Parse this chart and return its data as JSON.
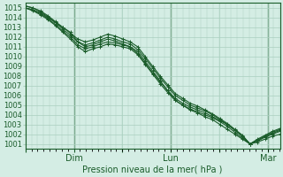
{
  "title": "",
  "xlabel": "Pression niveau de la mer( hPa )",
  "bg_color": "#d4ede4",
  "grid_color": "#aacfbf",
  "line_color": "#1a5c2a",
  "ylim": [
    1000.5,
    1015.5
  ],
  "yticks": [
    1001,
    1002,
    1003,
    1004,
    1005,
    1006,
    1007,
    1008,
    1009,
    1010,
    1011,
    1012,
    1013,
    1014,
    1015
  ],
  "xtick_labels": [
    "",
    "Dim",
    "",
    "Lun",
    "",
    "Mar"
  ],
  "xtick_positions": [
    0.0,
    0.333,
    0.667,
    1.0,
    1.333,
    1.667
  ],
  "vlines": [
    0.333,
    1.0,
    1.667
  ],
  "series": [
    [
      1015.0,
      1014.8,
      1014.5,
      1014.0,
      1013.5,
      1013.0,
      1012.5,
      1011.5,
      1011.0,
      1011.2,
      1011.5,
      1011.8,
      1011.6,
      1011.3,
      1011.0,
      1010.5,
      1009.5,
      1008.5,
      1007.5,
      1006.5,
      1005.5,
      1005.0,
      1004.5,
      1004.2,
      1003.8,
      1003.5,
      1003.0,
      1002.5,
      1002.0,
      1001.5,
      1001.0,
      1001.2,
      1001.5,
      1001.8,
      1002.0
    ],
    [
      1015.0,
      1014.7,
      1014.3,
      1013.8,
      1013.2,
      1012.5,
      1011.8,
      1011.0,
      1010.5,
      1010.8,
      1011.0,
      1011.3,
      1011.2,
      1011.0,
      1010.8,
      1010.2,
      1009.2,
      1008.2,
      1007.2,
      1006.3,
      1005.5,
      1005.0,
      1004.6,
      1004.3,
      1004.0,
      1003.7,
      1003.3,
      1002.8,
      1002.2,
      1001.6,
      1001.0,
      1001.3,
      1001.7,
      1002.0,
      1002.3
    ],
    [
      1015.0,
      1014.8,
      1014.4,
      1013.9,
      1013.3,
      1012.6,
      1012.0,
      1011.2,
      1010.8,
      1011.0,
      1011.3,
      1011.5,
      1011.4,
      1011.2,
      1011.0,
      1010.3,
      1009.3,
      1008.3,
      1007.4,
      1006.5,
      1005.7,
      1005.2,
      1004.8,
      1004.5,
      1004.2,
      1003.8,
      1003.4,
      1003.0,
      1002.4,
      1001.8,
      1001.0,
      1001.4,
      1001.8,
      1002.1,
      1002.4
    ],
    [
      1015.2,
      1015.0,
      1014.6,
      1014.1,
      1013.5,
      1012.8,
      1012.2,
      1011.5,
      1011.2,
      1011.4,
      1011.7,
      1012.0,
      1011.8,
      1011.5,
      1011.3,
      1010.7,
      1009.8,
      1008.8,
      1007.8,
      1006.9,
      1006.0,
      1005.5,
      1005.0,
      1004.7,
      1004.4,
      1004.0,
      1003.5,
      1003.0,
      1002.4,
      1001.8,
      1001.0,
      1001.4,
      1001.8,
      1002.2,
      1002.5
    ],
    [
      1015.2,
      1015.0,
      1014.7,
      1014.2,
      1013.6,
      1013.0,
      1012.4,
      1011.8,
      1011.5,
      1011.7,
      1012.0,
      1012.3,
      1012.1,
      1011.8,
      1011.5,
      1011.0,
      1010.0,
      1009.0,
      1008.0,
      1007.1,
      1006.2,
      1005.7,
      1005.2,
      1004.9,
      1004.5,
      1004.1,
      1003.6,
      1003.1,
      1002.5,
      1001.9,
      1001.0,
      1001.5,
      1001.9,
      1002.3,
      1002.6
    ]
  ],
  "n_points": 35,
  "xlim_start": 0.0,
  "xlim_end": 1.75,
  "figsize": [
    3.2,
    2.0
  ],
  "dpi": 100,
  "xlabel_fontsize": 7,
  "ytick_fontsize": 6,
  "xtick_fontsize": 7
}
